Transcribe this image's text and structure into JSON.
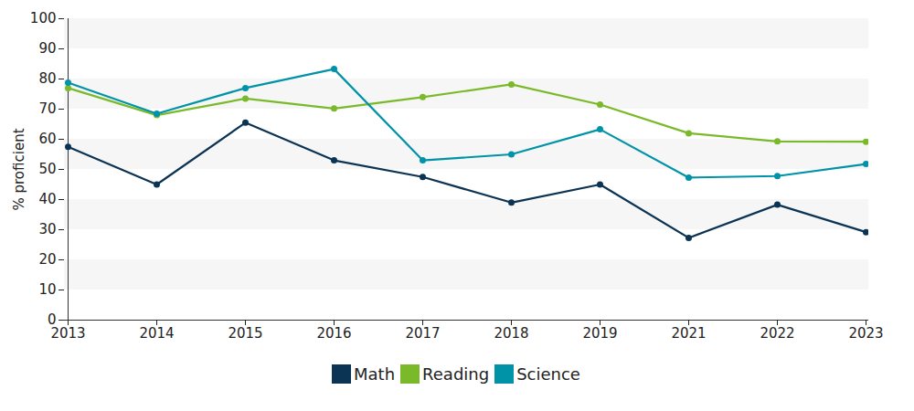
{
  "chart_data": {
    "type": "line",
    "ylabel": "% proficient",
    "categories": [
      "2013",
      "2014",
      "2015",
      "2016",
      "2017",
      "2018",
      "2019",
      "2021",
      "2022",
      "2023"
    ],
    "series": [
      {
        "name": "Math",
        "color": "#0b3354",
        "values": [
          57.5,
          45,
          65.5,
          53,
          47.5,
          39,
          45,
          27.3,
          38.3,
          29.2
        ]
      },
      {
        "name": "Reading",
        "color": "#7ab929",
        "values": [
          77,
          68,
          73.5,
          70.2,
          74,
          78.2,
          71.5,
          62,
          59.3,
          59.2
        ]
      },
      {
        "name": "Science",
        "color": "#0093a8",
        "values": [
          78.8,
          68.5,
          77,
          83.3,
          53,
          55,
          63.3,
          47.3,
          47.8,
          51.8
        ]
      }
    ],
    "ylim": [
      0,
      100
    ],
    "yticks": [
      0,
      10,
      20,
      30,
      40,
      50,
      60,
      70,
      80,
      90,
      100
    ],
    "grid": true,
    "legend": "bottom",
    "marker": "circle"
  }
}
